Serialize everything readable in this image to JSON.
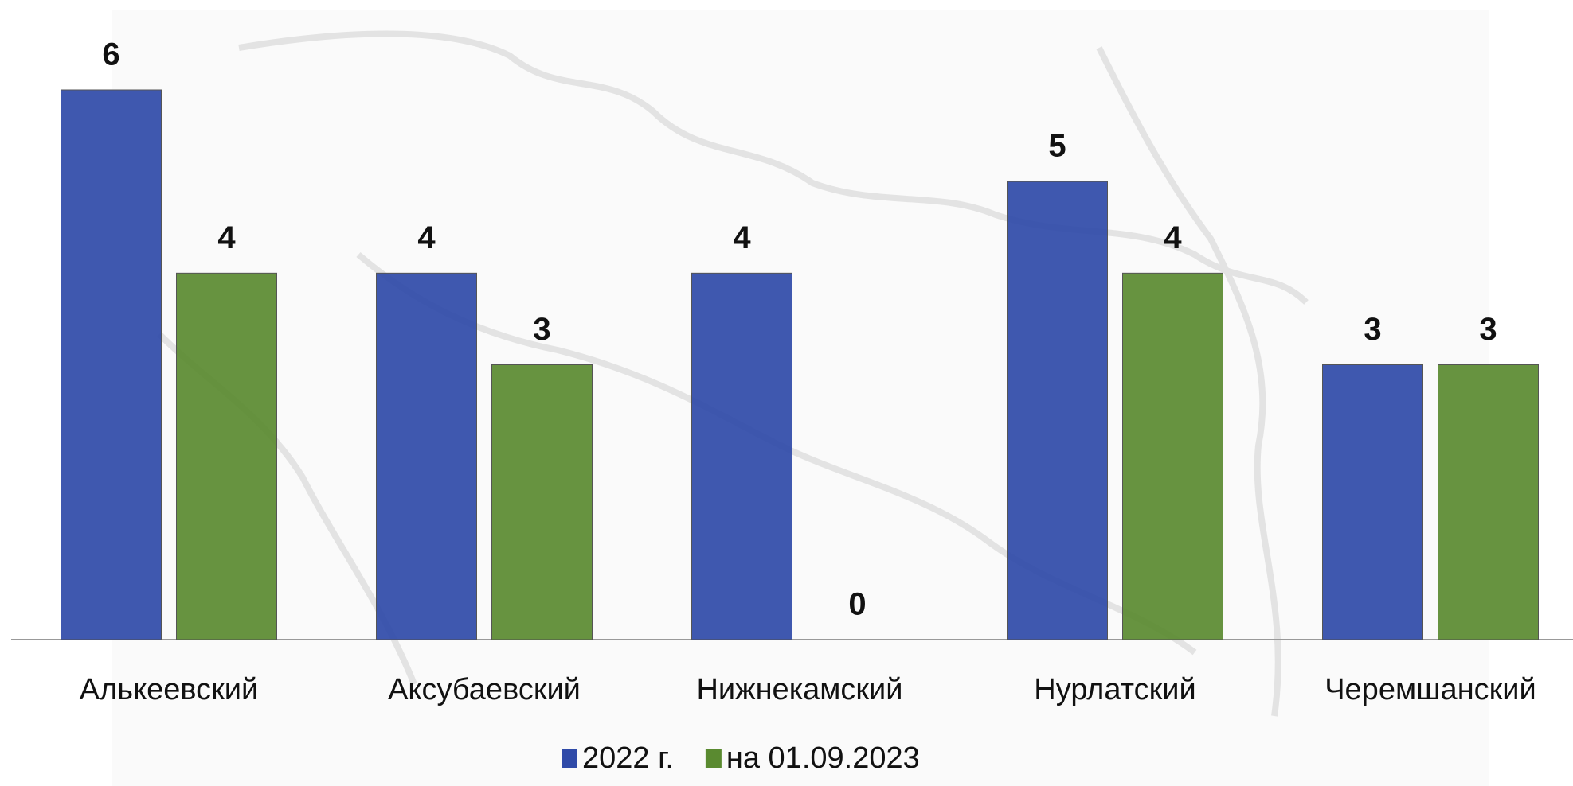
{
  "chart_data": {
    "type": "bar",
    "categories": [
      "Алькеевский",
      "Аксубаевский",
      "Нижнекамский",
      "Нурлатский",
      "Черемшанский"
    ],
    "series": [
      {
        "name": "2022 г.",
        "color": "#2f4aa8",
        "values": [
          6,
          4,
          4,
          5,
          3
        ]
      },
      {
        "name": "на 01.09.2023",
        "color": "#5a8a30",
        "values": [
          4,
          3,
          0,
          4,
          3
        ]
      }
    ],
    "ylim": [
      0,
      6
    ],
    "grid": false
  }
}
